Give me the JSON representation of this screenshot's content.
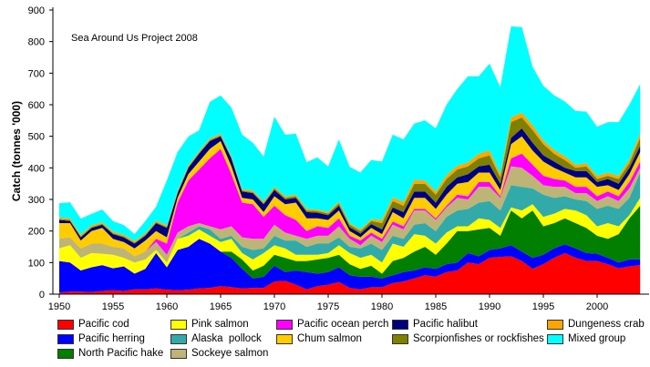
{
  "chart_data": {
    "type": "area",
    "stacked": true,
    "title": "",
    "annotation": "Sea Around Us Project 2008",
    "xlabel": "",
    "ylabel": "Catch (tonnes '000)",
    "xlim": [
      1950,
      2004
    ],
    "ylim": [
      0,
      900
    ],
    "yticks": [
      "0",
      "100",
      "200",
      "300",
      "400",
      "500",
      "600",
      "700",
      "800",
      "900"
    ],
    "xticks": [
      "1950",
      "1955",
      "1960",
      "1965",
      "1970",
      "1975",
      "1980",
      "1985",
      "1990",
      "1995",
      "2000"
    ],
    "legend_placement": "bottom",
    "x": [
      1950,
      1951,
      1952,
      1953,
      1954,
      1955,
      1956,
      1957,
      1958,
      1959,
      1960,
      1961,
      1962,
      1963,
      1964,
      1965,
      1966,
      1967,
      1968,
      1969,
      1970,
      1971,
      1972,
      1973,
      1974,
      1975,
      1976,
      1977,
      1978,
      1979,
      1980,
      1981,
      1982,
      1983,
      1984,
      1985,
      1986,
      1987,
      1988,
      1989,
      1990,
      1991,
      1992,
      1993,
      1994,
      1995,
      1996,
      1997,
      1998,
      1999,
      2000,
      2001,
      2002,
      2003,
      2004
    ],
    "series": [
      {
        "name": "Pacific cod",
        "color": "#ff0000",
        "values": [
          5,
          8,
          8,
          7,
          10,
          12,
          10,
          15,
          15,
          18,
          14,
          12,
          14,
          18,
          20,
          25,
          22,
          18,
          20,
          20,
          40,
          42,
          30,
          15,
          25,
          30,
          38,
          20,
          15,
          22,
          22,
          35,
          40,
          50,
          60,
          55,
          70,
          75,
          100,
          95,
          115,
          118,
          120,
          105,
          80,
          95,
          115,
          130,
          115,
          105,
          105,
          95,
          82,
          88,
          92
        ]
      },
      {
        "name": "Pacific herring",
        "color": "#0000ff",
        "values": [
          100,
          92,
          67,
          78,
          82,
          70,
          78,
          50,
          65,
          112,
          71,
          128,
          136,
          157,
          140,
          110,
          93,
          62,
          30,
          35,
          50,
          28,
          45,
          55,
          40,
          40,
          47,
          40,
          40,
          33,
          28,
          25,
          30,
          25,
          25,
          25,
          25,
          25,
          30,
          25,
          25,
          27,
          35,
          30,
          35,
          30,
          30,
          28,
          30,
          25,
          23,
          20,
          18,
          22,
          18
        ]
      },
      {
        "name": "North Pacific hake",
        "color": "#007f00",
        "values": [
          0,
          0,
          0,
          0,
          0,
          0,
          0,
          0,
          0,
          0,
          0,
          0,
          0,
          0,
          0,
          0,
          20,
          30,
          25,
          35,
          35,
          45,
          30,
          35,
          45,
          45,
          40,
          35,
          25,
          35,
          15,
          45,
          45,
          60,
          65,
          45,
          65,
          100,
          70,
          85,
          70,
          40,
          110,
          105,
          150,
          90,
          80,
          82,
          80,
          80,
          57,
          60,
          90,
          130,
          170
        ]
      },
      {
        "name": "Pink salmon",
        "color": "#ffff00",
        "values": [
          40,
          55,
          40,
          45,
          36,
          43,
          27,
          35,
          30,
          10,
          15,
          35,
          35,
          30,
          25,
          30,
          40,
          20,
          35,
          40,
          30,
          30,
          20,
          20,
          15,
          15,
          30,
          35,
          35,
          35,
          35,
          55,
          35,
          55,
          35,
          35,
          35,
          15,
          15,
          35,
          25,
          25,
          10,
          25,
          20,
          30,
          30,
          30,
          40,
          40,
          30,
          50,
          25,
          10,
          25
        ]
      },
      {
        "name": "Alaska  pollock",
        "color": "#33aaaa",
        "values": [
          0,
          0,
          0,
          0,
          0,
          0,
          0,
          0,
          0,
          0,
          0,
          0,
          10,
          10,
          20,
          10,
          10,
          20,
          30,
          15,
          30,
          25,
          45,
          25,
          35,
          30,
          25,
          20,
          30,
          35,
          40,
          25,
          25,
          30,
          40,
          40,
          50,
          50,
          55,
          50,
          60,
          55,
          70,
          75,
          50,
          70,
          50,
          40,
          35,
          45,
          55,
          55,
          55,
          55,
          80
        ]
      },
      {
        "name": "Sockeye salmon",
        "color": "#bdb476",
        "values": [
          30,
          25,
          30,
          30,
          32,
          25,
          30,
          20,
          25,
          25,
          25,
          20,
          20,
          10,
          10,
          30,
          30,
          30,
          35,
          30,
          35,
          25,
          15,
          25,
          25,
          25,
          35,
          25,
          10,
          25,
          25,
          35,
          30,
          45,
          40,
          35,
          30,
          40,
          30,
          50,
          45,
          40,
          60,
          60,
          40,
          30,
          35,
          30,
          20,
          25,
          25,
          30,
          25,
          30,
          15
        ]
      },
      {
        "name": "Pacific ocean perch",
        "color": "#ff00ff",
        "values": [
          0,
          0,
          0,
          0,
          0,
          0,
          0,
          0,
          0,
          10,
          35,
          95,
          145,
          170,
          215,
          255,
          165,
          110,
          110,
          70,
          60,
          55,
          50,
          25,
          30,
          25,
          25,
          10,
          15,
          10,
          10,
          10,
          10,
          5,
          5,
          5,
          5,
          10,
          10,
          15,
          15,
          5,
          25,
          45,
          35,
          30,
          25,
          20,
          20,
          20,
          15,
          15,
          15,
          20,
          20
        ]
      },
      {
        "name": "Chum salmon",
        "color": "#ffcc00",
        "values": [
          50,
          45,
          25,
          40,
          50,
          25,
          20,
          25,
          35,
          25,
          20,
          15,
          20,
          25,
          30,
          25,
          25,
          15,
          15,
          15,
          30,
          35,
          55,
          40,
          25,
          25,
          25,
          15,
          10,
          15,
          15,
          30,
          25,
          35,
          35,
          30,
          35,
          35,
          45,
          30,
          30,
          20,
          45,
          55,
          45,
          45,
          35,
          25,
          30,
          30,
          30,
          20,
          20,
          25,
          30
        ]
      },
      {
        "name": "Pacific halibut",
        "color": "#000080",
        "values": [
          10,
          7,
          10,
          10,
          10,
          15,
          15,
          15,
          15,
          25,
          30,
          15,
          20,
          25,
          25,
          15,
          25,
          20,
          20,
          25,
          20,
          15,
          15,
          20,
          18,
          15,
          15,
          12,
          12,
          12,
          15,
          15,
          20,
          20,
          20,
          20,
          25,
          20,
          25,
          20,
          25,
          20,
          20,
          25,
          25,
          20,
          20,
          15,
          20,
          20,
          15,
          20,
          20,
          20,
          20
        ]
      },
      {
        "name": "Scorpionfishes or rockfishes",
        "color": "#808000",
        "values": [
          3,
          3,
          3,
          3,
          3,
          3,
          3,
          3,
          3,
          3,
          3,
          3,
          3,
          3,
          3,
          3,
          3,
          3,
          3,
          3,
          5,
          5,
          5,
          5,
          5,
          5,
          8,
          8,
          8,
          10,
          20,
          20,
          20,
          25,
          25,
          25,
          25,
          25,
          25,
          25,
          30,
          20,
          50,
          35,
          40,
          35,
          25,
          25,
          10,
          15,
          10,
          10,
          15,
          15,
          25
        ]
      },
      {
        "name": "Dungeness crab",
        "color": "#ffa500",
        "values": [
          5,
          5,
          5,
          5,
          5,
          5,
          5,
          5,
          5,
          5,
          5,
          5,
          5,
          5,
          5,
          5,
          5,
          5,
          5,
          5,
          5,
          5,
          5,
          5,
          5,
          5,
          5,
          5,
          5,
          5,
          10,
          12,
          12,
          12,
          10,
          10,
          12,
          12,
          12,
          15,
          15,
          10,
          15,
          15,
          15,
          12,
          12,
          12,
          10,
          10,
          10,
          10,
          10,
          12,
          15
        ]
      },
      {
        "name": "Mixed group",
        "color": "#00ffff",
        "values": [
          45,
          51,
          51,
          36,
          40,
          33,
          31,
          22,
          38,
          44,
          142,
          122,
          91,
          66,
          116,
          121,
          153,
          172,
          151,
          143,
          222,
          195,
          193,
          148,
          165,
          144,
          197,
          178,
          180,
          188,
          185,
          198,
          198,
          178,
          190,
          200,
          223,
          243,
          273,
          245,
          275,
          275,
          288,
          271,
          185,
          173,
          173,
          173,
          170,
          163,
          155,
          160,
          170,
          173,
          155
        ]
      }
    ]
  },
  "legend_layout": [
    [
      0,
      1,
      2
    ],
    [
      3,
      4,
      5
    ],
    [
      6,
      7
    ],
    [
      8,
      9
    ],
    [
      10,
      11
    ]
  ]
}
